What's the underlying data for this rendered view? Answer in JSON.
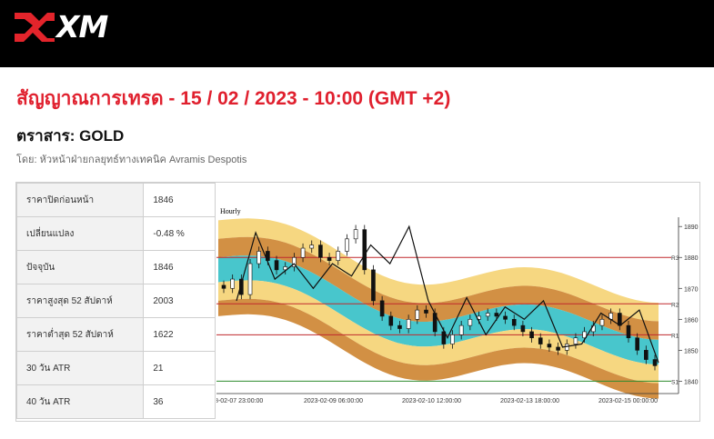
{
  "brand": {
    "logo_text": "XM",
    "colors": {
      "header_bg": "#000000",
      "title_red": "#e0202e",
      "logo_red": "#e3242b"
    }
  },
  "title": "สัญญาณการเทรด - 15 / 02 / 2023 - 10:00 (GMT +2)",
  "instrument": "ตราสาร: GOLD",
  "author": "โดย: หัวหน้าฝ่ายกลยุทธ์ทางเทคนิค Avramis Despotis",
  "stats": [
    {
      "label": "ราคาปิดก่อนหน้า",
      "value": "1846"
    },
    {
      "label": "เปลี่ยนแปลง",
      "value": "-0.48 %"
    },
    {
      "label": "ปัจจุบัน",
      "value": "1846"
    },
    {
      "label": "ราคาสูงสุด 52 สัปดาห์",
      "value": "2003"
    },
    {
      "label": "ราคาต่ำสุด 52 สัปดาห์",
      "value": "1622"
    },
    {
      "label": "30 วัน ATR",
      "value": "21"
    },
    {
      "label": "40 วัน ATR",
      "value": "36"
    }
  ],
  "chart_data": {
    "type": "line",
    "timeframe_label": "Hourly",
    "y_ticks": [
      1840,
      1850,
      1860,
      1870,
      1880,
      1890
    ],
    "ylim": [
      1836,
      1893
    ],
    "x_tick_labels": [
      "3-02-07 23:00:00",
      "2023-02-09 06:00:00",
      "2023-02-10 12:00:00",
      "2023-02-13 18:00:00",
      "2023-02-15 00:00:00"
    ],
    "levels": [
      {
        "name": "R3",
        "value": 1880,
        "color": "#c0282d"
      },
      {
        "name": "R2",
        "value": 1865,
        "color": "#c0282d"
      },
      {
        "name": "R1",
        "value": 1855,
        "color": "#c0282d"
      },
      {
        "name": "S1",
        "value": 1840,
        "color": "#2e8b2e"
      }
    ],
    "price_path": [
      1870,
      1873,
      1868,
      1878,
      1882,
      1879,
      1876,
      1877,
      1880,
      1883,
      1884,
      1880,
      1879,
      1882,
      1886,
      1889,
      1876,
      1866,
      1861,
      1858,
      1857,
      1860,
      1863,
      1862,
      1856,
      1852,
      1855,
      1858,
      1860,
      1861,
      1862,
      1861,
      1860,
      1858,
      1856,
      1854,
      1852,
      1851,
      1850,
      1852,
      1854,
      1856,
      1858,
      1860,
      1862,
      1858,
      1854,
      1850,
      1847,
      1845
    ],
    "zigzag": [
      1866,
      1888,
      1873,
      1878,
      1870,
      1878,
      1874,
      1884,
      1878,
      1890,
      1866,
      1854,
      1867,
      1855,
      1864,
      1860,
      1866,
      1851,
      1852,
      1862,
      1858,
      1863,
      1846
    ]
  }
}
